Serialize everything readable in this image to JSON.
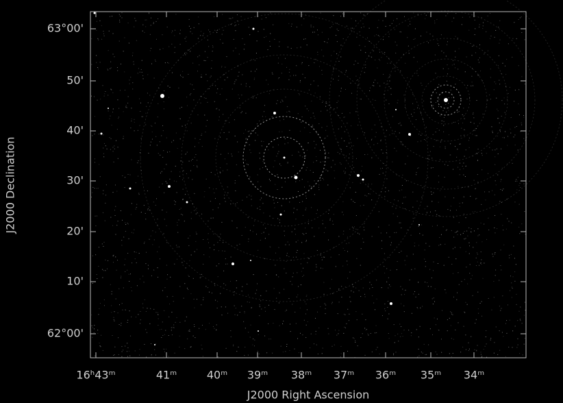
{
  "axes": {
    "x_label": "J2000 Right Ascension",
    "y_label": "J2000 Declination",
    "x_ticks": [
      "16ʰ43ᵐ",
      "41ᵐ",
      "40ᵐ",
      "39ᵐ",
      "38ᵐ",
      "37ᵐ",
      "36ᵐ",
      "35ᵐ",
      "34ᵐ"
    ],
    "y_ticks": [
      "63°00'",
      "50'",
      "40'",
      "30'",
      "20'",
      "10'",
      "62°00'"
    ]
  }
}
